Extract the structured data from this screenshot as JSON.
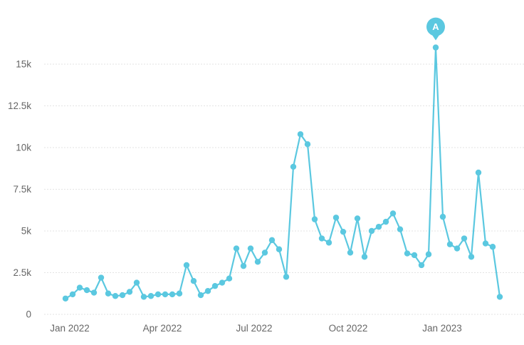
{
  "chart_data": {
    "type": "line",
    "title": "",
    "xlabel": "",
    "ylabel": "",
    "x_ticks": [
      "Jan 2022",
      "Apr 2022",
      "Jul 2022",
      "Oct 2022",
      "Jan 2023"
    ],
    "y_ticks": [
      "0",
      "2.5k",
      "5k",
      "7.5k",
      "10k",
      "12.5k",
      "15k"
    ],
    "ylim": [
      0,
      17000
    ],
    "grid": "horizontal",
    "colors": {
      "series": "#5bc8e0",
      "annotation": "#5bc8e0",
      "grid": "#e3e3e3",
      "text": "#666666"
    },
    "series": [
      {
        "values": [
          950,
          1200,
          1600,
          1450,
          1300,
          2200,
          1250,
          1100,
          1150,
          1350,
          1900,
          1050,
          1100,
          1200,
          1200,
          1200,
          1250,
          2950,
          2000,
          1150,
          1400,
          1700,
          1900,
          2150,
          3950,
          2900,
          3950,
          3150,
          3700,
          4450,
          3900,
          2250,
          8850,
          10800,
          10200,
          5700,
          4550,
          4300,
          5800,
          4950,
          3700,
          5750,
          3450,
          5000,
          5250,
          5550,
          6050,
          5100,
          3650,
          3550,
          2950,
          3600,
          16000,
          5850,
          4200,
          3950,
          4550,
          3450,
          8500,
          4250,
          4050,
          1050
        ]
      }
    ],
    "annotations": [
      {
        "label": "A",
        "index": 52
      }
    ]
  }
}
